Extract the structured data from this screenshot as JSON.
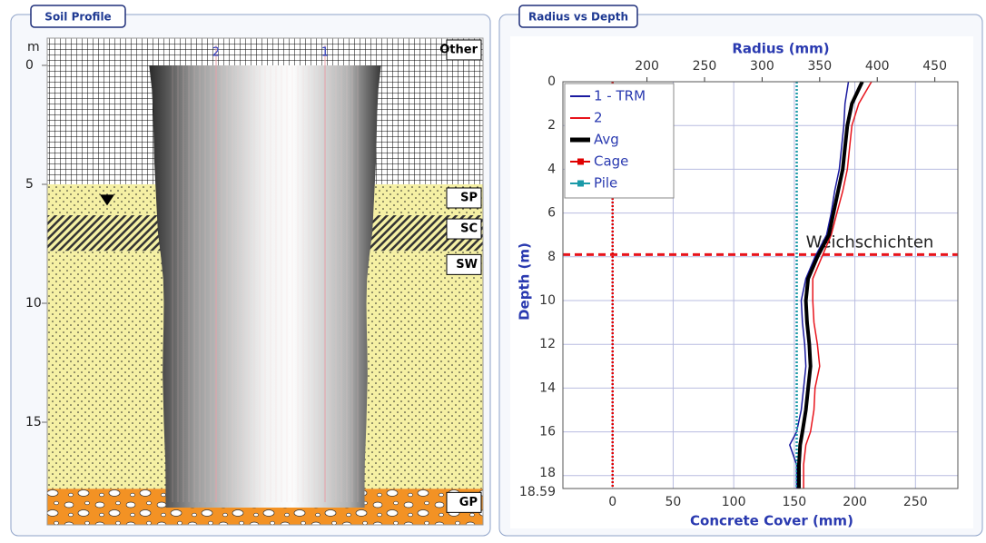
{
  "soil_profile": {
    "title": "Soil Profile",
    "depth_unit": "m",
    "depth_ticks": [
      0,
      5,
      10,
      15
    ],
    "pile_labels": [
      "2",
      "1"
    ],
    "water_table_depth": 5.7,
    "layers": [
      {
        "name": "Other"
      },
      {
        "name": "SP",
        "top": 5
      },
      {
        "name": "SC",
        "top": 6.3
      },
      {
        "name": "SW",
        "top": 7.8
      },
      {
        "name": "GP",
        "top": 17.8
      }
    ]
  },
  "chart_data": {
    "type": "line",
    "title": "Radius vs Depth",
    "x_label": "Radius (mm)",
    "x2_label": "Concrete Cover (mm)",
    "y_label": "Depth (m)",
    "depths": [
      0,
      1,
      2,
      3,
      4,
      5,
      6,
      7,
      8,
      9,
      10,
      11,
      12,
      13,
      14,
      15,
      16,
      16.6,
      17.5,
      18.59
    ],
    "xlim": [
      127,
      470
    ],
    "xticks": [
      200,
      250,
      300,
      350,
      400,
      450
    ],
    "x2lim": [
      -41,
      285
    ],
    "x2ticks": [
      0,
      50,
      100,
      150,
      200,
      250
    ],
    "ylim": [
      0,
      18.59
    ],
    "yticks": [
      0,
      2,
      4,
      6,
      8,
      10,
      12,
      14,
      16,
      18,
      18.59
    ],
    "y_inverted": true,
    "grid": true,
    "legend": "top-left",
    "series": [
      {
        "name": "1 - TRM",
        "color": "#1a1aa0",
        "axis": "radius",
        "values": [
          375,
          372,
          371,
          369,
          367,
          363,
          360,
          356,
          346,
          338,
          334,
          335,
          337,
          338,
          336,
          334,
          330,
          324,
          330,
          330
        ]
      },
      {
        "name": "2",
        "color": "#e8141c",
        "axis": "radius",
        "values": [
          395,
          384,
          378,
          376,
          374,
          370,
          365,
          360,
          352,
          344,
          344,
          345,
          348,
          350,
          346,
          345,
          342,
          338,
          336,
          336
        ]
      },
      {
        "name": "Avg",
        "color": "#000000",
        "axis": "radius",
        "values": [
          387,
          378,
          374,
          372,
          370,
          366,
          362,
          358,
          348,
          340,
          338,
          339,
          341,
          342,
          340,
          338,
          335,
          333,
          332,
          332
        ]
      },
      {
        "name": "Cage",
        "color": "#e00000",
        "axis": "cover",
        "values": [
          0
        ]
      },
      {
        "name": "Pile",
        "color": "#1a9aa8",
        "axis": "cover",
        "values": [
          152
        ]
      }
    ],
    "annotation": {
      "text": "Weichschichten",
      "depth": 7.9
    }
  }
}
